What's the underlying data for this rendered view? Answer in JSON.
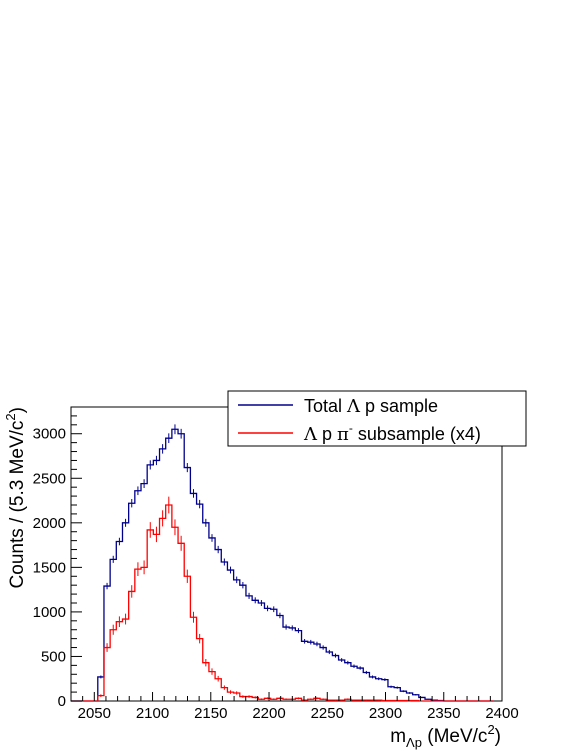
{
  "chart_data": {
    "type": "histogram",
    "xlabel": "m",
    "xlabel_sub": "Λp",
    "xlabel_unit": "(MeV/c",
    "xlabel_unit_sup": "2",
    "xlabel_unit_end": ")",
    "ylabel": "Counts / (5.3 MeV/c",
    "ylabel_sup": "2",
    "ylabel_end": ")",
    "xlim": [
      2030,
      2400
    ],
    "ylim": [
      0,
      3300
    ],
    "xticks": [
      "2050",
      "2100",
      "2150",
      "2200",
      "2250",
      "2300",
      "2350",
      "2400"
    ],
    "yticks": [
      "0",
      "500",
      "1000",
      "1500",
      "2000",
      "2500",
      "3000"
    ],
    "grid": false,
    "legend_position": "top-right",
    "bin_start": 2053,
    "bin_width": 5.3,
    "series": [
      {
        "name_parts": [
          "Total ",
          "Λ",
          " p sample"
        ],
        "color": "#00008b",
        "values": [
          270,
          1290,
          1590,
          1790,
          2000,
          2220,
          2360,
          2440,
          2650,
          2700,
          2830,
          2950,
          3050,
          3000,
          2620,
          2330,
          2210,
          2000,
          1830,
          1700,
          1560,
          1470,
          1360,
          1300,
          1180,
          1130,
          1100,
          1040,
          1030,
          960,
          830,
          820,
          790,
          670,
          660,
          640,
          600,
          550,
          510,
          460,
          430,
          390,
          370,
          320,
          270,
          250,
          240,
          160,
          150,
          110,
          90,
          70,
          40,
          20,
          10,
          5,
          0,
          0,
          0,
          0,
          0,
          0,
          0,
          0
        ]
      },
      {
        "name_parts": [
          "Λ",
          " p ",
          "π",
          "-",
          " subsample (x4)"
        ],
        "color": "#ff0000",
        "values": [
          60,
          600,
          800,
          890,
          920,
          1230,
          1480,
          1500,
          1920,
          1870,
          2050,
          2200,
          1950,
          1770,
          1400,
          940,
          700,
          430,
          330,
          250,
          150,
          100,
          90,
          50,
          50,
          40,
          20,
          30,
          20,
          30,
          20,
          20,
          30,
          10,
          20,
          30,
          20,
          10,
          10,
          10,
          20,
          10,
          10,
          10,
          10,
          10,
          5,
          5,
          5,
          5,
          5,
          5,
          0,
          0,
          0,
          0,
          0,
          0,
          0,
          0,
          0,
          0,
          0,
          0
        ]
      }
    ]
  }
}
